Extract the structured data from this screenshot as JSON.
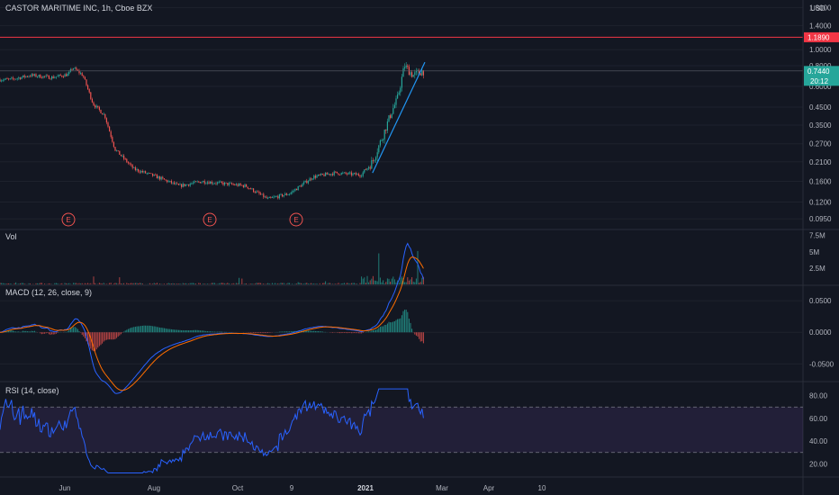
{
  "header": {
    "title": "CASTOR MARITIME INC, 1h, Cboe BZX",
    "currency": "USD"
  },
  "colors": {
    "background": "#131722",
    "up": "#26a69a",
    "down": "#ef5350",
    "macd_line": "#2962ff",
    "signal_line": "#ff6d00",
    "rsi_line": "#2962ff",
    "rsi_band": "#7e57c2",
    "resistance": "#f23645",
    "trendline": "#2196f3",
    "last_price_bg": "#26a69a"
  },
  "price_axis": {
    "scale": "log",
    "ticks": [
      "1.8000",
      "1.4000",
      "1.0000",
      "0.8000",
      "0.6000",
      "0.4500",
      "0.3500",
      "0.2700",
      "0.2100",
      "0.1600",
      "0.1200",
      "0.0950"
    ],
    "resistance_label": "1.1890",
    "last_price_label": "0.7440",
    "countdown_label": "20:12"
  },
  "time_axis": {
    "labels": [
      "Jun",
      "Aug",
      "Oct",
      "9",
      "2021",
      "Mar",
      "Apr",
      "10"
    ]
  },
  "earnings_markers": [
    "E",
    "E",
    "E"
  ],
  "volume_pane": {
    "title": "Vol",
    "ticks": [
      "7.5M",
      "5M",
      "2.5M"
    ]
  },
  "macd_pane": {
    "title": "MACD (12, 26, close, 9)",
    "ticks": [
      "0.0500",
      "0.0000",
      "-0.0500"
    ]
  },
  "rsi_pane": {
    "title": "RSI (14, close)",
    "ticks": [
      "80.00",
      "60.00",
      "40.00",
      "20.00"
    ],
    "upper_band": 70,
    "lower_band": 30
  },
  "chart_data": {
    "type": "candlestick",
    "title": "CASTOR MARITIME INC, 1h, Cboe BZX",
    "y_scale": "log",
    "ylim": [
      0.085,
      1.9
    ],
    "x_dates": [
      "2020-05",
      "2020-06",
      "2020-07",
      "2020-08",
      "2020-09",
      "2020-10",
      "2020-11",
      "2020-12",
      "2021-01",
      "2021-02"
    ],
    "close_path": [
      {
        "x": "2020-05-01",
        "y": 0.66
      },
      {
        "x": "2020-05-15",
        "y": 0.7
      },
      {
        "x": "2020-05-30",
        "y": 0.68
      },
      {
        "x": "2020-06-10",
        "y": 0.71
      },
      {
        "x": "2020-06-13",
        "y": 0.78
      },
      {
        "x": "2020-06-20",
        "y": 0.7
      },
      {
        "x": "2020-06-27",
        "y": 0.47
      },
      {
        "x": "2020-07-05",
        "y": 0.4
      },
      {
        "x": "2020-07-12",
        "y": 0.25
      },
      {
        "x": "2020-07-25",
        "y": 0.19
      },
      {
        "x": "2020-08-10",
        "y": 0.17
      },
      {
        "x": "2020-08-25",
        "y": 0.15
      },
      {
        "x": "2020-09-10",
        "y": 0.16
      },
      {
        "x": "2020-09-25",
        "y": 0.155
      },
      {
        "x": "2020-10-10",
        "y": 0.15
      },
      {
        "x": "2020-10-25",
        "y": 0.125
      },
      {
        "x": "2020-11-09",
        "y": 0.135
      },
      {
        "x": "2020-11-25",
        "y": 0.17
      },
      {
        "x": "2020-12-10",
        "y": 0.18
      },
      {
        "x": "2020-12-28",
        "y": 0.175
      },
      {
        "x": "2021-01-05",
        "y": 0.21
      },
      {
        "x": "2021-01-12",
        "y": 0.3
      },
      {
        "x": "2021-01-18",
        "y": 0.42
      },
      {
        "x": "2021-01-22",
        "y": 0.5
      },
      {
        "x": "2021-01-27",
        "y": 0.8
      },
      {
        "x": "2021-02-02",
        "y": 0.7
      },
      {
        "x": "2021-02-08",
        "y": 0.744
      }
    ],
    "resistance": 1.189,
    "last_price": 0.744,
    "trendline": [
      {
        "x": "2021-01-05",
        "y": 0.18
      },
      {
        "x": "2021-02-10",
        "y": 0.84
      }
    ],
    "volume_ylim": [
      0,
      8000000
    ],
    "macd_ylim": [
      -0.075,
      0.07
    ],
    "rsi_ylim": [
      10,
      90
    ]
  }
}
